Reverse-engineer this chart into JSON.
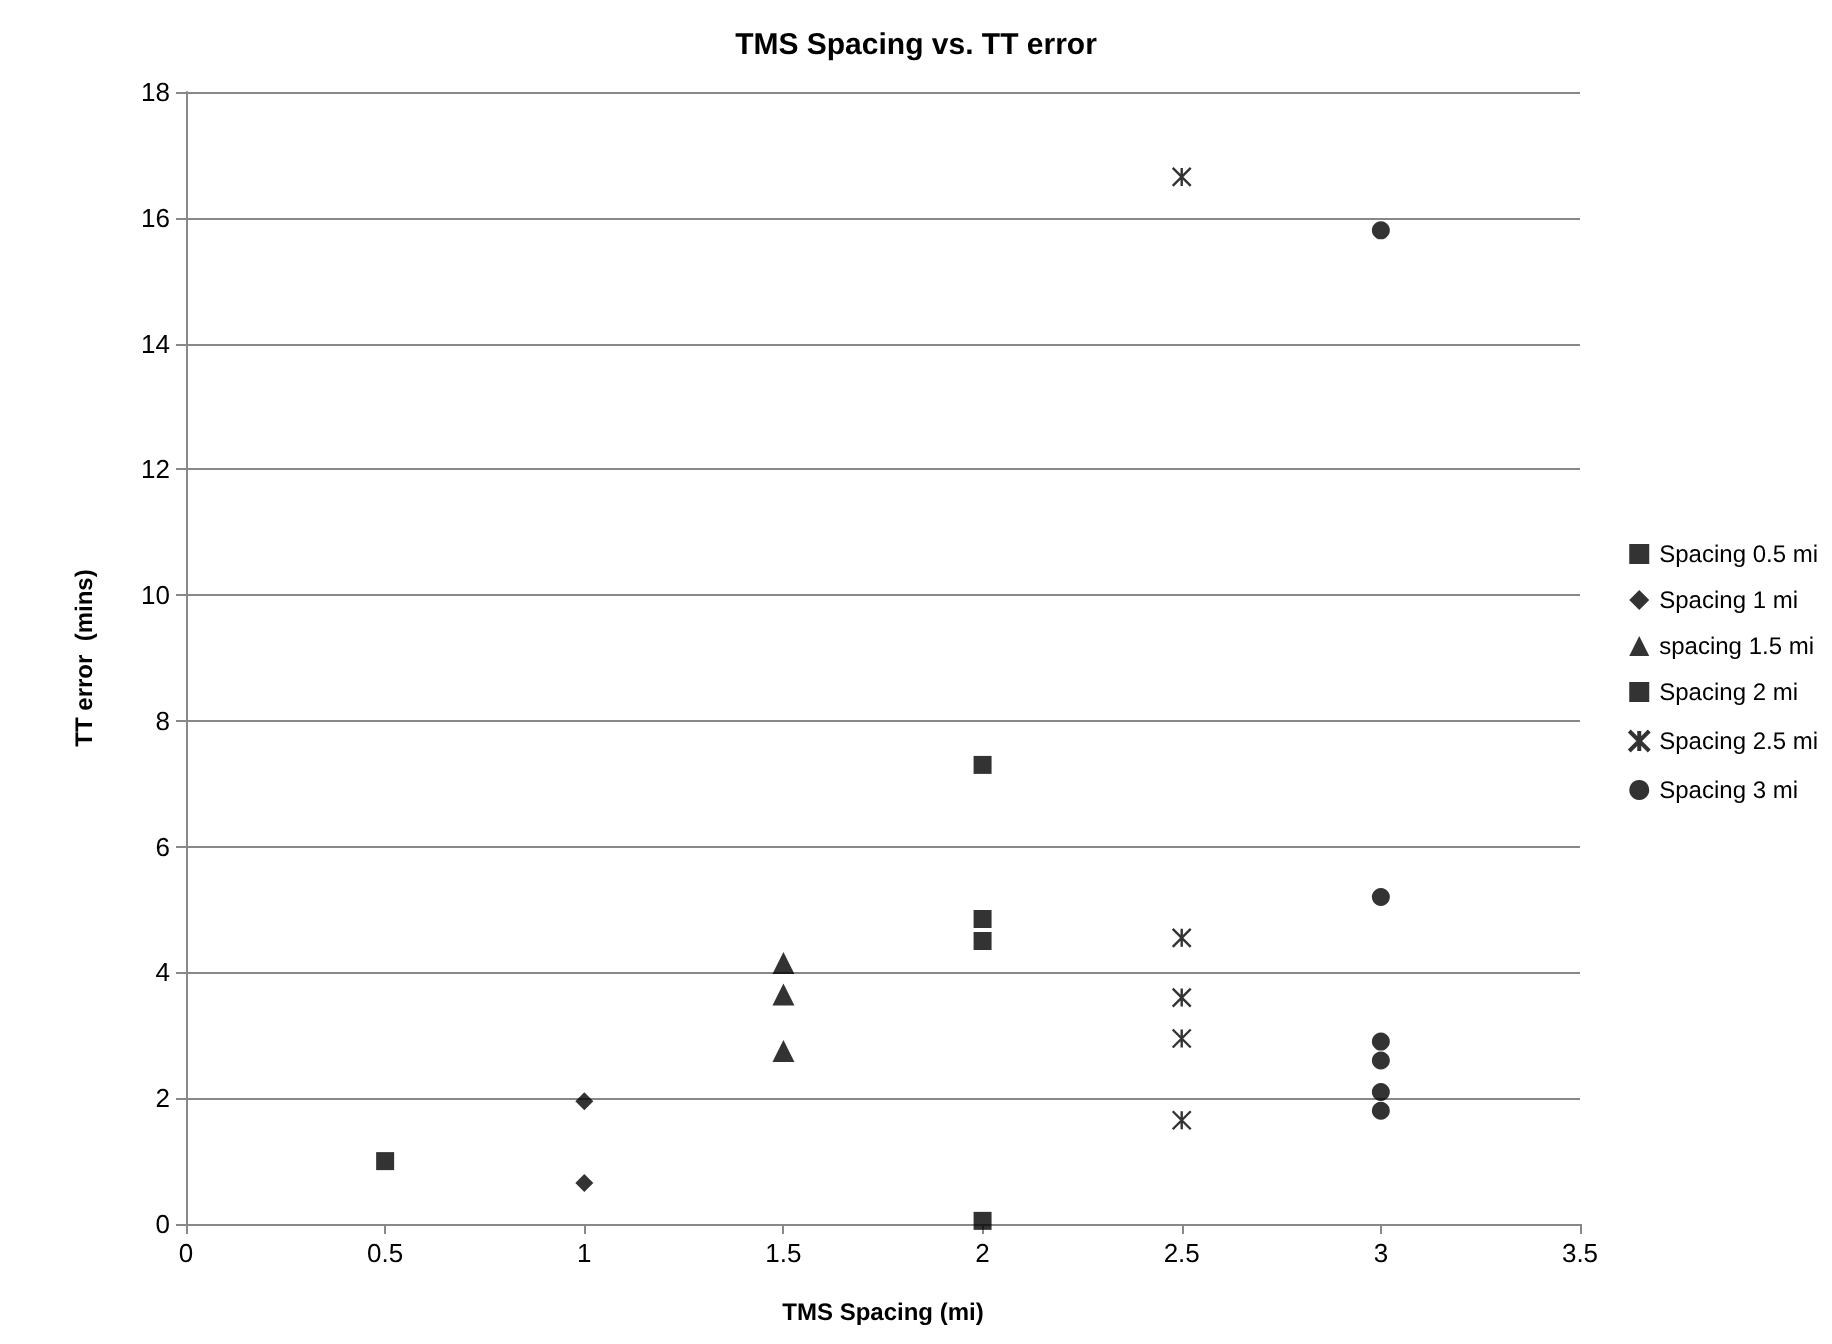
{
  "chart_data": {
    "type": "scatter",
    "title": "TMS Spacing vs. TT error",
    "xlabel": "TMS Spacing (mi)",
    "ylabel": "TT error  (mins)",
    "series": [
      {
        "name": "Spacing 0.5 mi",
        "color": "#000000",
        "marker": "square",
        "x": [
          0.5
        ],
        "values": [
          1.0
        ]
      },
      {
        "name": "Spacing 1 mi",
        "color": "#000000",
        "marker": "diamond",
        "x": [
          1,
          1
        ],
        "values": [
          1.95,
          0.65
        ]
      },
      {
        "name": "spacing 1.5 mi",
        "color": "#000000",
        "marker": "triangle",
        "x": [
          1.5,
          1.5,
          1.5
        ],
        "values": [
          4.15,
          3.65,
          2.75
        ]
      },
      {
        "name": "Spacing 2 mi",
        "color": "#000000",
        "marker": "square",
        "x": [
          2,
          2,
          2,
          2
        ],
        "values": [
          7.3,
          4.85,
          4.5,
          0.05
        ]
      },
      {
        "name": "Spacing 2.5 mi",
        "color": "#000000",
        "marker": "cross",
        "x": [
          2.5,
          2.5,
          2.5,
          2.5,
          2.5
        ],
        "values": [
          16.65,
          4.55,
          3.6,
          2.95,
          1.65
        ]
      },
      {
        "name": "Spacing 3 mi",
        "color": "#000000",
        "marker": "circle",
        "x": [
          3,
          3,
          3,
          3,
          3,
          3
        ],
        "values": [
          15.8,
          5.2,
          2.9,
          2.6,
          2.1,
          1.8
        ]
      }
    ],
    "xlim": [
      0,
      3.5
    ],
    "xticks": [
      0,
      0.5,
      1,
      1.5,
      2,
      2.5,
      3,
      3.5
    ],
    "ylim": [
      0,
      18
    ],
    "yticks": [
      0,
      2,
      4,
      6,
      8,
      10,
      12,
      14,
      16,
      18
    ],
    "grid": "y",
    "legend": "right"
  }
}
